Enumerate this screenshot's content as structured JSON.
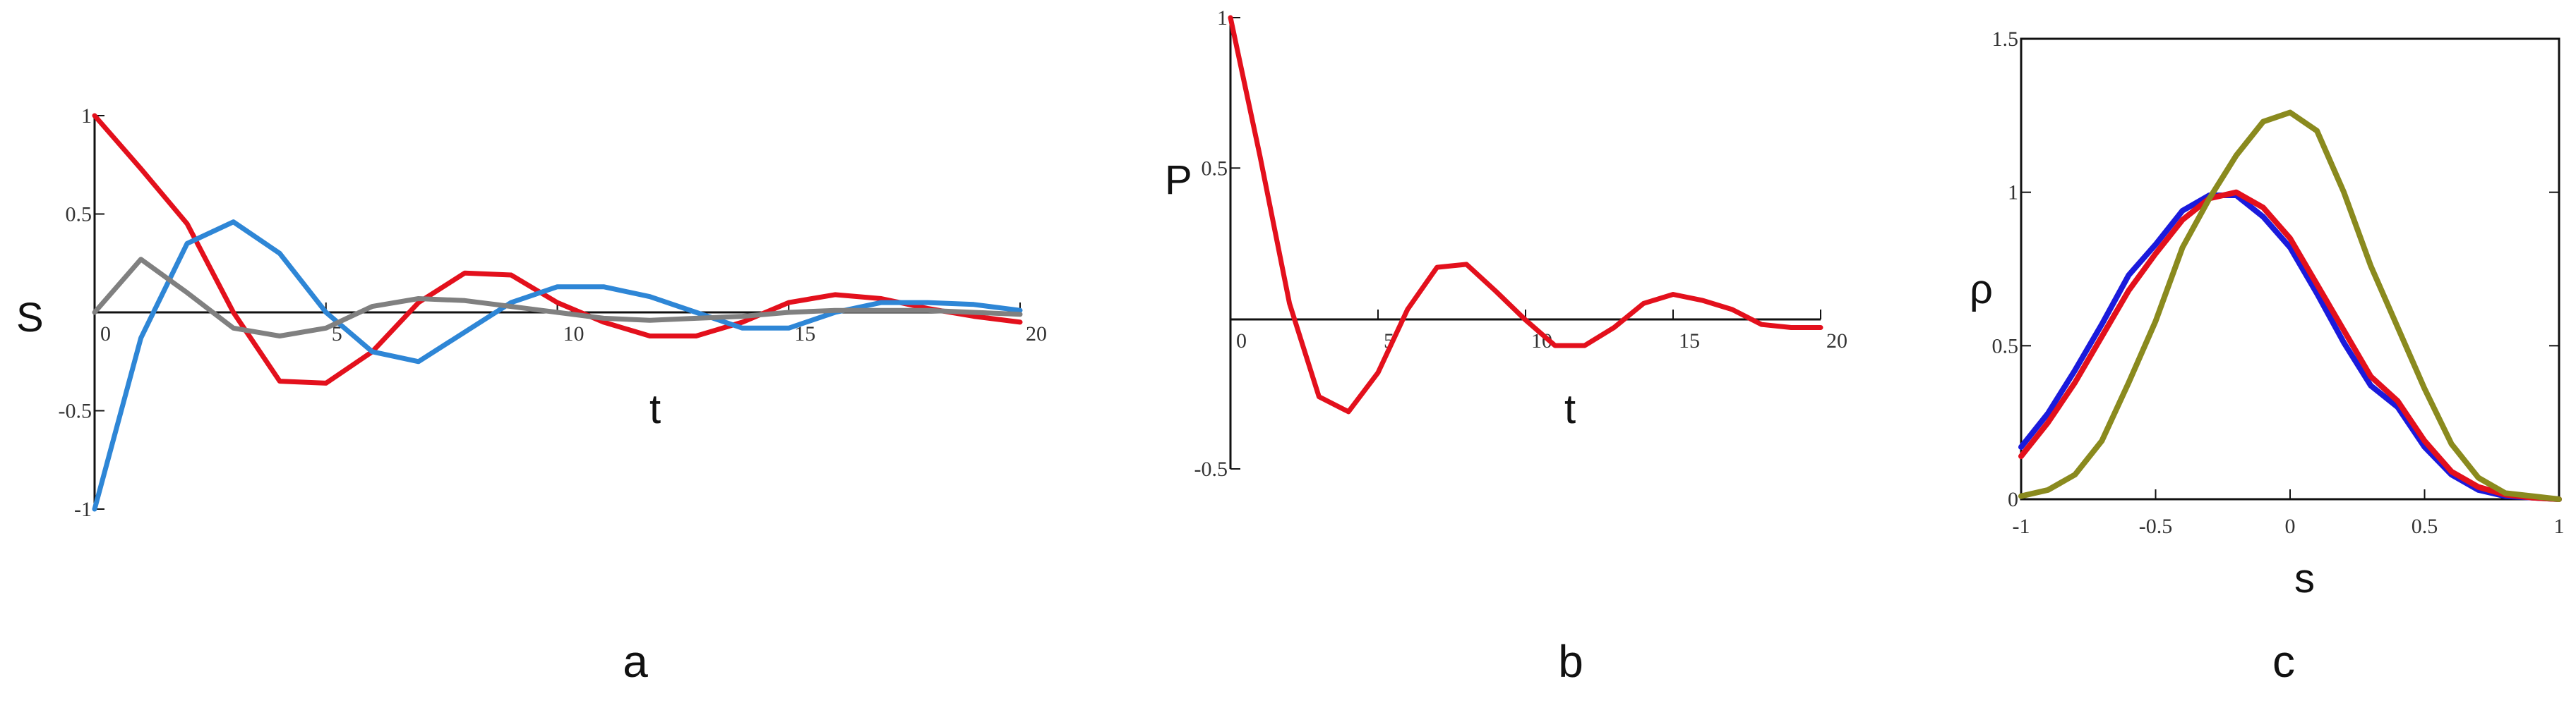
{
  "chart_data": [
    {
      "type": "line",
      "panel_label": "a",
      "xlabel": "t",
      "ylabel": "S",
      "xlim": [
        0,
        20
      ],
      "ylim": [
        -1,
        1
      ],
      "xticks": [
        "0",
        "5",
        "10",
        "15",
        "20"
      ],
      "yticks": [
        "-1",
        "-0.5",
        "0.5",
        "1"
      ],
      "grid": false,
      "x": [
        0,
        1,
        2,
        3,
        4,
        5,
        6,
        7,
        8,
        9,
        10,
        11,
        12,
        13,
        14,
        15,
        16,
        17,
        18,
        19,
        20
      ],
      "series": [
        {
          "color": "#e3101c",
          "values": [
            1,
            0.73,
            0.45,
            0,
            -0.35,
            -0.36,
            -0.2,
            0.05,
            0.2,
            0.19,
            0.05,
            -0.05,
            -0.12,
            -0.12,
            -0.05,
            0.05,
            0.09,
            0.07,
            0.02,
            -0.02,
            -0.05
          ]
        },
        {
          "color": "#2e86d6",
          "values": [
            -1,
            -0.13,
            0.35,
            0.46,
            0.3,
            0,
            -0.2,
            -0.25,
            -0.1,
            0.05,
            0.13,
            0.13,
            0.08,
            0,
            -0.08,
            -0.08,
            0,
            0.05,
            0.05,
            0.04,
            0.01
          ]
        },
        {
          "color": "#808080",
          "values": [
            0,
            0.27,
            0.1,
            -0.08,
            -0.12,
            -0.08,
            0.03,
            0.07,
            0.06,
            0.03,
            0,
            -0.03,
            -0.04,
            -0.03,
            -0.02,
            0,
            0.01,
            0.01,
            0.01,
            0,
            -0.01
          ]
        }
      ]
    },
    {
      "type": "line",
      "panel_label": "b",
      "xlabel": "t",
      "ylabel": "P",
      "xlim": [
        0,
        20
      ],
      "ylim": [
        -0.5,
        1
      ],
      "xticks": [
        "0",
        "5",
        "10",
        "15",
        "20"
      ],
      "yticks": [
        "-0.5",
        "0.5",
        "1"
      ],
      "grid": false,
      "x": [
        0,
        1,
        2,
        3,
        4,
        5,
        6,
        7,
        8,
        9,
        10,
        11,
        12,
        13,
        14,
        15,
        16,
        17,
        18,
        19,
        20
      ],
      "series": [
        {
          "color": "#e3101c",
          "values": [
            1,
            0.54,
            0.05,
            -0.26,
            -0.31,
            -0.18,
            0.03,
            0.17,
            0.18,
            0.09,
            -0.005,
            -0.09,
            -0.09,
            -0.03,
            0.05,
            0.08,
            0.06,
            0.03,
            -0.02,
            -0.03,
            -0.03
          ]
        }
      ]
    },
    {
      "type": "line",
      "panel_label": "c",
      "xlabel": "s",
      "ylabel": "ρ",
      "xlim": [
        -1,
        1
      ],
      "ylim": [
        0,
        1.5
      ],
      "xticks": [
        "-1",
        "-0.5",
        "0",
        "0.5",
        "1"
      ],
      "yticks": [
        "0",
        "0.5",
        "1",
        "1.5"
      ],
      "grid": false,
      "x": [
        -1,
        -0.9,
        -0.8,
        -0.7,
        -0.6,
        -0.5,
        -0.4,
        -0.3,
        -0.2,
        -0.1,
        0,
        0.1,
        0.2,
        0.3,
        0.4,
        0.5,
        0.6,
        0.7,
        0.8,
        0.9,
        1
      ],
      "series": [
        {
          "color": "#1a1adc",
          "values": [
            0.17,
            0.28,
            0.42,
            0.57,
            0.73,
            0.83,
            0.94,
            0.99,
            0.99,
            0.92,
            0.82,
            0.67,
            0.51,
            0.37,
            0.3,
            0.17,
            0.08,
            0.03,
            0.01,
            0.005,
            0
          ]
        },
        {
          "color": "#e3101c",
          "values": [
            0.14,
            0.25,
            0.38,
            0.53,
            0.68,
            0.8,
            0.91,
            0.98,
            1.0,
            0.95,
            0.85,
            0.7,
            0.55,
            0.4,
            0.32,
            0.19,
            0.09,
            0.04,
            0.015,
            0.005,
            0
          ]
        },
        {
          "color": "#8a8a1e",
          "values": [
            0.01,
            0.03,
            0.08,
            0.19,
            0.38,
            0.58,
            0.82,
            0.98,
            1.12,
            1.23,
            1.26,
            1.2,
            1.0,
            0.76,
            0.56,
            0.36,
            0.18,
            0.07,
            0.02,
            0.01,
            0
          ]
        }
      ]
    }
  ]
}
